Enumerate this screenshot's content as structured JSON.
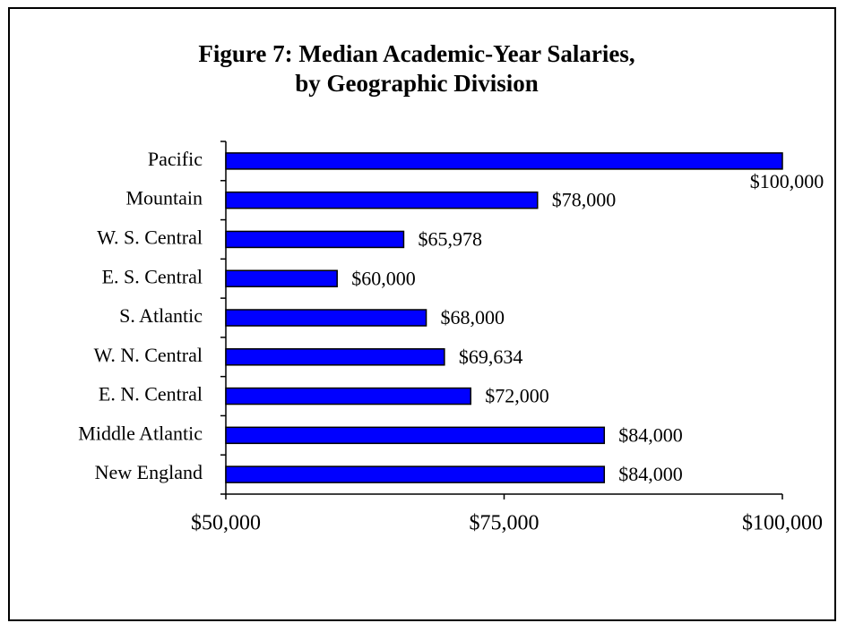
{
  "chart_data": {
    "type": "hbar",
    "title": [
      "Figure 7: Median Academic-Year Salaries,",
      "by Geographic Division"
    ],
    "categories": [
      "Pacific",
      "Mountain",
      "W. S. Central",
      "E. S. Central",
      "S. Atlantic",
      "W. N. Central",
      "E. N. Central",
      "Middle Atlantic",
      "New England"
    ],
    "values": [
      100000,
      78000,
      65978,
      60000,
      68000,
      69634,
      72000,
      84000,
      84000
    ],
    "value_labels": [
      "$100,000",
      "$78,000",
      "$65,978",
      "$60,000",
      "$68,000",
      "$69,634",
      "$72,000",
      "$84,000",
      "$84,000"
    ],
    "color": "#0000ff",
    "xlim": [
      50000,
      100000
    ],
    "xticks": [
      {
        "value": 50000,
        "label": "$50,000"
      },
      {
        "value": 75000,
        "label": "$75,000"
      },
      {
        "value": 100000,
        "label": "$100,000"
      }
    ],
    "grid": false
  }
}
